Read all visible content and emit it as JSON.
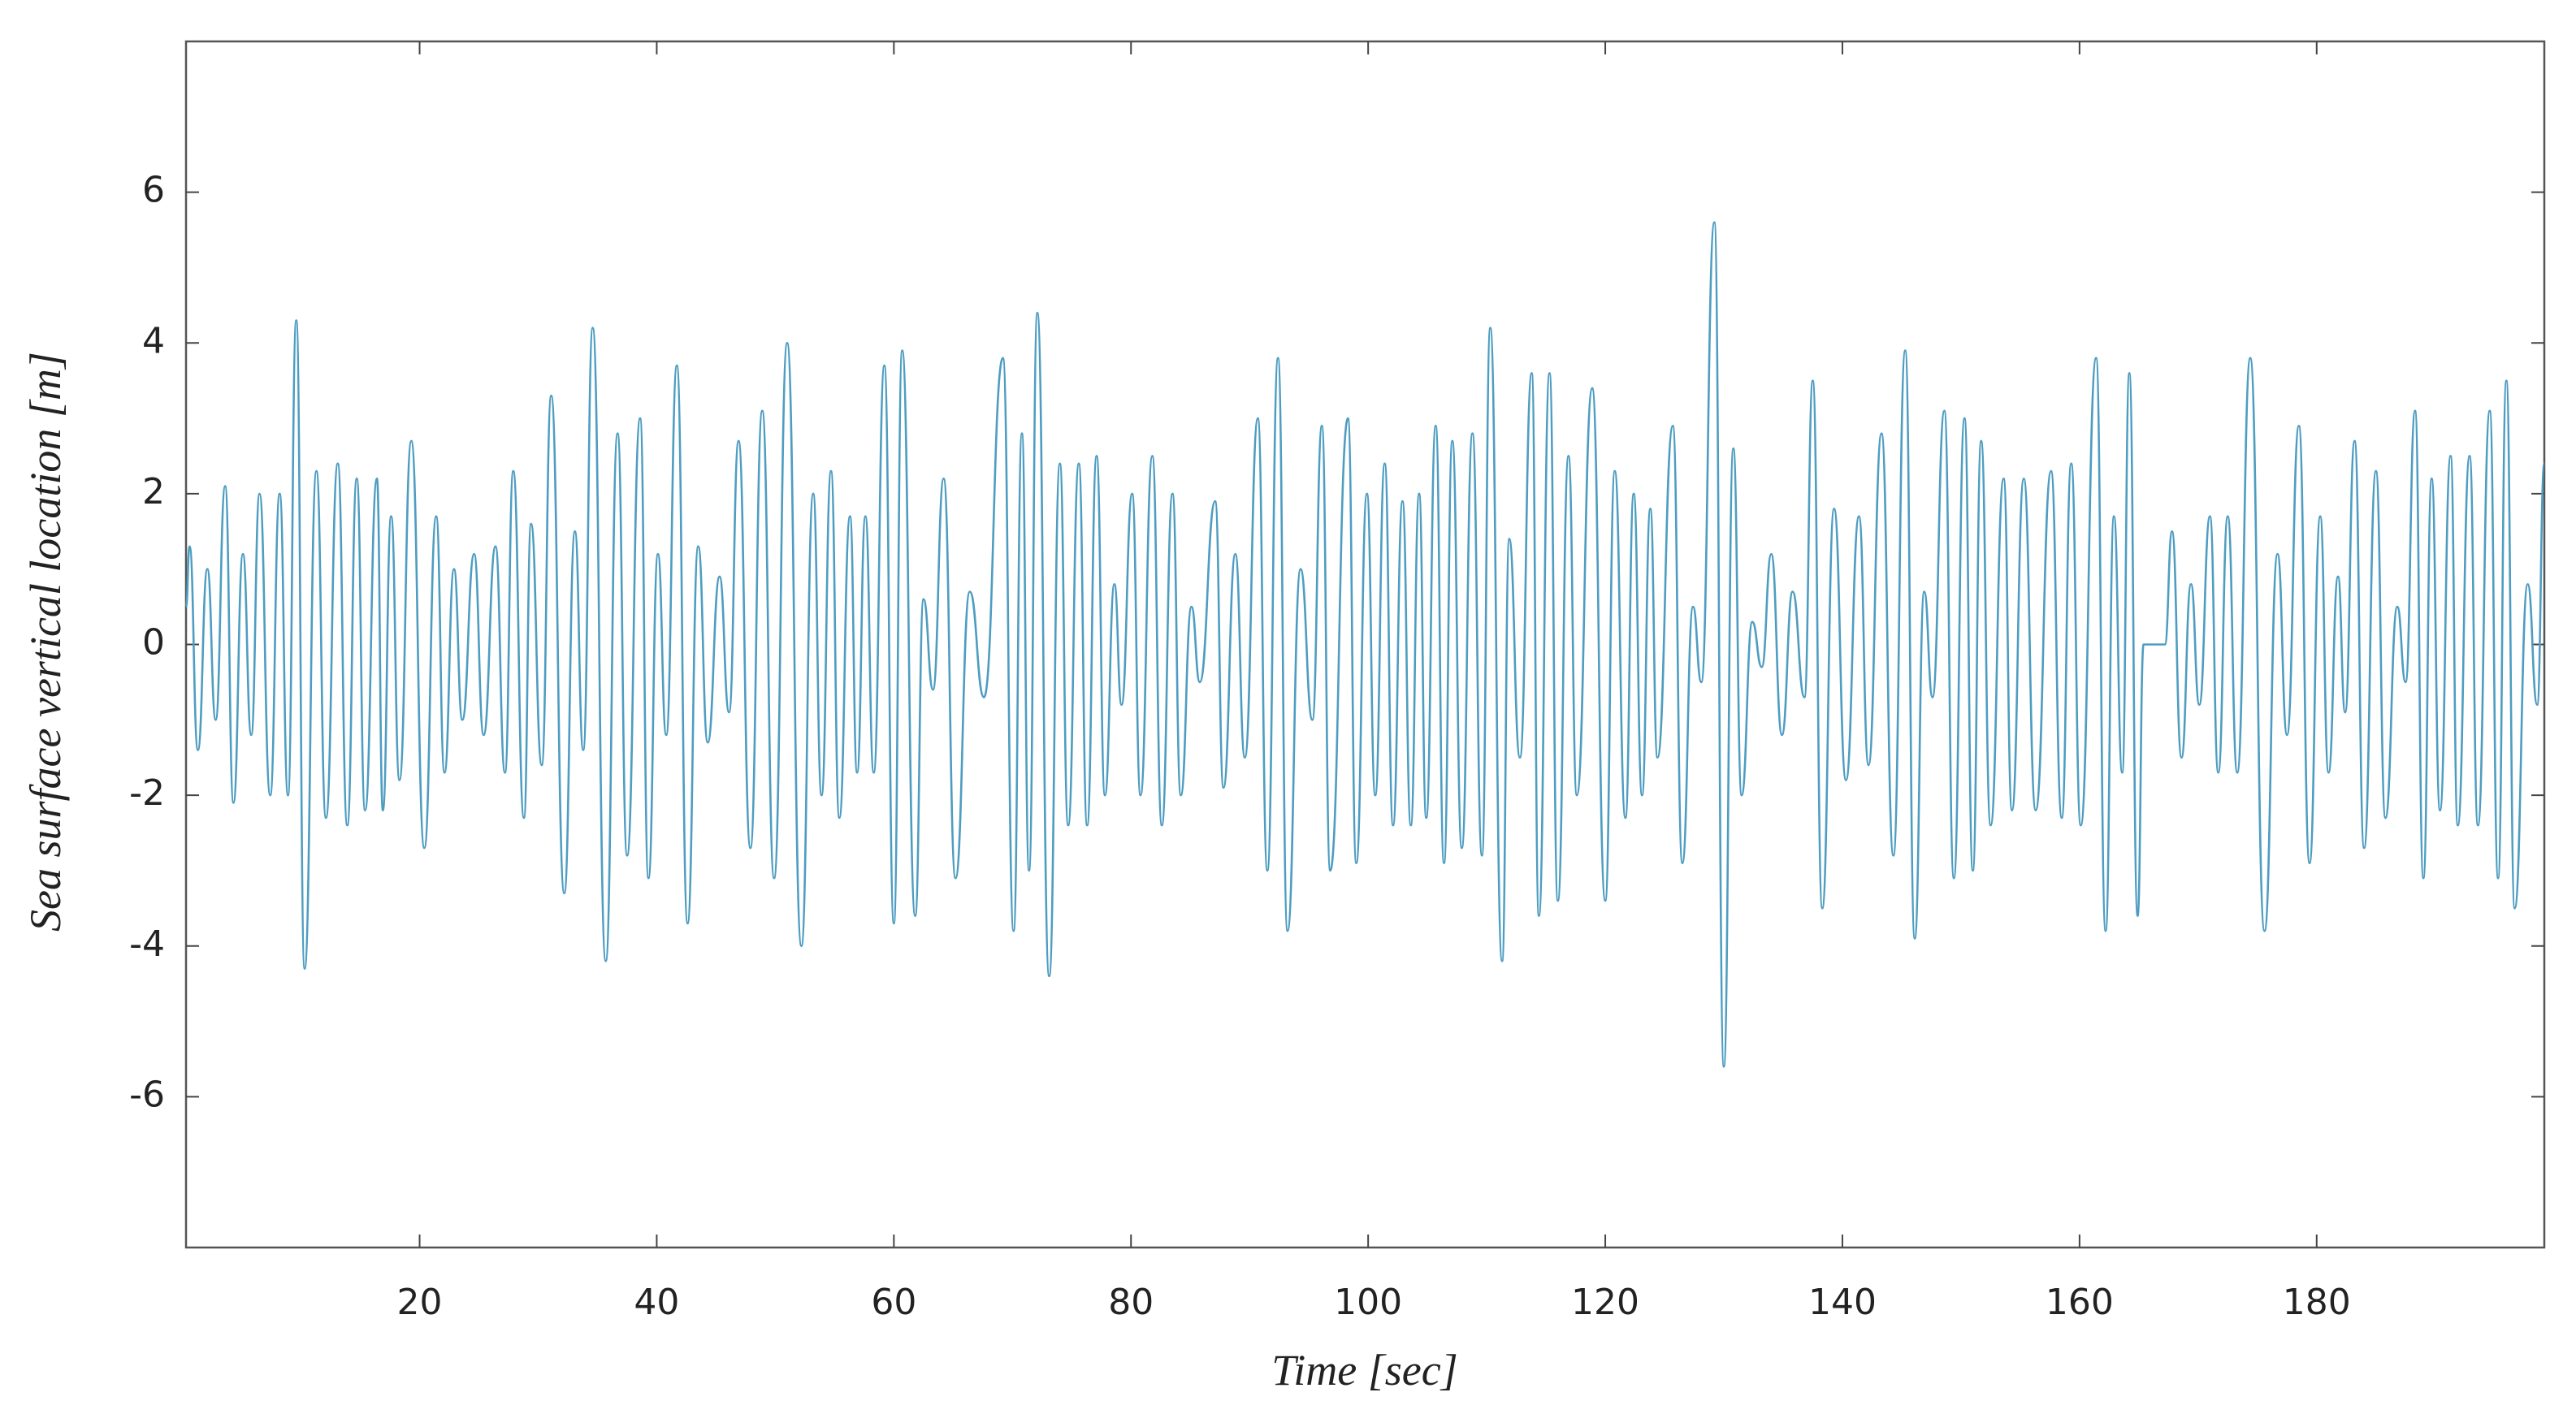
{
  "chart_data": {
    "type": "line",
    "x_label": "Time [sec]",
    "y_label": "Sea surface vertical location [m]",
    "color": "#4e9dc1",
    "xlim": [
      0.3,
      199.2
    ],
    "ylim": [
      -8,
      8
    ],
    "xticks": [
      20,
      40,
      60,
      80,
      100,
      120,
      140,
      160,
      180
    ],
    "yticks": [
      -6,
      -4,
      -2,
      0,
      2,
      4,
      6
    ],
    "x": [
      0.3,
      0.6,
      1.3,
      2.1,
      2.8,
      3.6,
      4.3,
      5.1,
      5.8,
      6.5,
      7.4,
      8.2,
      8.9,
      9.6,
      10.3,
      11.3,
      12.1,
      13.1,
      13.9,
      14.7,
      15.4,
      16.4,
      16.9,
      17.6,
      18.3,
      19.3,
      20.4,
      21.4,
      22.1,
      22.9,
      23.6,
      24.6,
      25.4,
      26.4,
      27.2,
      27.9,
      28.8,
      29.4,
      30.3,
      31.1,
      32.2,
      33.1,
      33.8,
      34.6,
      35.7,
      36.7,
      37.5,
      38.6,
      39.3,
      40.1,
      40.8,
      41.7,
      42.6,
      43.5,
      44.3,
      45.3,
      46.1,
      46.9,
      47.9,
      48.9,
      49.9,
      51.0,
      52.2,
      53.2,
      53.9,
      54.7,
      55.4,
      56.3,
      56.9,
      57.6,
      58.3,
      59.2,
      60.0,
      60.7,
      61.8,
      62.5,
      63.3,
      64.2,
      65.2,
      66.4,
      67.6,
      69.2,
      70.1,
      70.8,
      71.4,
      72.1,
      73.1,
      74.0,
      74.7,
      75.6,
      76.3,
      77.1,
      77.8,
      78.6,
      79.2,
      80.1,
      80.8,
      81.8,
      82.6,
      83.5,
      84.2,
      85.1,
      85.8,
      87.1,
      87.8,
      88.8,
      89.6,
      90.7,
      91.5,
      92.4,
      93.2,
      94.3,
      95.3,
      96.1,
      96.8,
      98.3,
      99.0,
      99.9,
      100.6,
      101.4,
      102.1,
      102.9,
      103.6,
      104.3,
      104.9,
      105.7,
      106.4,
      107.1,
      107.9,
      108.8,
      109.6,
      110.3,
      111.3,
      111.9,
      112.8,
      113.8,
      114.4,
      115.3,
      116.0,
      116.9,
      117.6,
      118.9,
      120.0,
      120.8,
      121.7,
      122.4,
      123.1,
      123.8,
      124.4,
      125.7,
      126.5,
      127.4,
      128.1,
      129.2,
      130.0,
      130.8,
      131.5,
      132.4,
      133.2,
      134.0,
      134.9,
      135.8,
      136.8,
      137.5,
      138.3,
      139.3,
      140.3,
      141.4,
      142.2,
      143.3,
      144.3,
      145.3,
      146.1,
      146.9,
      147.6,
      148.6,
      149.4,
      150.3,
      151.0,
      151.7,
      152.5,
      153.6,
      154.3,
      155.3,
      156.3,
      157.6,
      158.5,
      159.3,
      160.1,
      161.4,
      162.2,
      162.9,
      163.6,
      164.2,
      164.9,
      165.4,
      167.2,
      167.8,
      168.6,
      169.4,
      170.1,
      171.0,
      171.7,
      172.5,
      173.3,
      174.4,
      175.6,
      176.7,
      177.5,
      178.5,
      179.4,
      180.3,
      181.0,
      181.8,
      182.4,
      183.2,
      184.0,
      185.0,
      185.8,
      186.8,
      187.5,
      188.3,
      189.0,
      189.7,
      190.4,
      191.3,
      191.9,
      192.9,
      193.6,
      194.6,
      195.3,
      196.0,
      196.7,
      197.8,
      198.6,
      199.2
    ],
    "values": [
      0.5,
      1.3,
      -1.4,
      1.0,
      -1.0,
      2.1,
      -2.1,
      1.2,
      -1.2,
      2.0,
      -2.0,
      2.0,
      -2.0,
      4.3,
      -4.3,
      2.3,
      -2.3,
      2.4,
      -2.4,
      2.2,
      -2.2,
      2.2,
      -2.2,
      1.7,
      -1.8,
      2.7,
      -2.7,
      1.7,
      -1.7,
      1.0,
      -1.0,
      1.2,
      -1.2,
      1.3,
      -1.7,
      2.3,
      -2.3,
      1.6,
      -1.6,
      3.3,
      -3.3,
      1.5,
      -1.4,
      4.2,
      -4.2,
      2.8,
      -2.8,
      3.0,
      -3.1,
      1.2,
      -1.2,
      3.7,
      -3.7,
      1.3,
      -1.3,
      0.9,
      -0.9,
      2.7,
      -2.7,
      3.1,
      -3.1,
      4.0,
      -4.0,
      2.0,
      -2.0,
      2.3,
      -2.3,
      1.7,
      -1.7,
      1.7,
      -1.7,
      3.7,
      -3.7,
      3.9,
      -3.6,
      0.6,
      -0.6,
      2.2,
      -3.1,
      0.7,
      -0.7,
      3.8,
      -3.8,
      2.8,
      -3.0,
      4.4,
      -4.4,
      2.4,
      -2.4,
      2.4,
      -2.4,
      2.5,
      -2.0,
      0.8,
      -0.8,
      2.0,
      -2.0,
      2.5,
      -2.4,
      2.0,
      -2.0,
      0.5,
      -0.5,
      1.9,
      -1.9,
      1.2,
      -1.5,
      3.0,
      -3.0,
      3.8,
      -3.8,
      1.0,
      -1.0,
      2.9,
      -3.0,
      3.0,
      -2.9,
      2.0,
      -2.0,
      2.4,
      -2.4,
      1.9,
      -2.4,
      2.0,
      -2.3,
      2.9,
      -2.9,
      2.7,
      -2.7,
      2.8,
      -2.8,
      4.2,
      -4.2,
      1.4,
      -1.5,
      3.6,
      -3.6,
      3.6,
      -3.4,
      2.5,
      -2.0,
      3.4,
      -3.4,
      2.3,
      -2.3,
      2.0,
      -2.0,
      1.8,
      -1.5,
      2.9,
      -2.9,
      0.5,
      -0.5,
      5.6,
      -5.6,
      2.6,
      -2.0,
      0.3,
      -0.3,
      1.2,
      -1.2,
      0.7,
      -0.7,
      3.5,
      -3.5,
      1.8,
      -1.8,
      1.7,
      -1.6,
      2.8,
      -2.8,
      3.9,
      -3.9,
      0.7,
      -0.7,
      3.1,
      -3.1,
      3.0,
      -3.0,
      2.7,
      -2.4,
      2.2,
      -2.2,
      2.2,
      -2.2,
      2.3,
      -2.3,
      2.4,
      -2.4,
      3.8,
      -3.8,
      1.7,
      -1.7,
      3.6,
      -3.6,
      0,
      0,
      1.5,
      -1.5,
      0.8,
      -0.8,
      1.7,
      -1.7,
      1.7,
      -1.7,
      3.8,
      -3.8,
      1.2,
      -1.2,
      2.9,
      -2.9,
      1.7,
      -1.7,
      0.9,
      -0.9,
      2.7,
      -2.7,
      2.3,
      -2.3,
      0.5,
      -0.5,
      3.1,
      -3.1,
      2.2,
      -2.2,
      2.5,
      -2.4,
      2.5,
      -2.4,
      3.1,
      -3.1,
      3.5,
      -3.5,
      0.8,
      -0.8,
      2.4
    ]
  }
}
